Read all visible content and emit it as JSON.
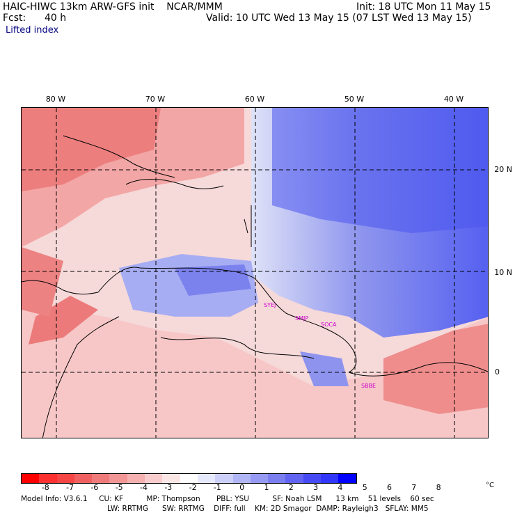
{
  "header": {
    "model_line": "HAIC-HIWC 13km ARW-GFS init    NCAR/MMM",
    "init_line": "Init: 18 UTC Mon 11 May 15",
    "fcst_label": "Fcst:",
    "fcst_value": "40 h",
    "valid_line": "Valid: 10 UTC Wed 13 May 15 (07 LST Wed 13 May 15)",
    "field_name": "Lifted index"
  },
  "map": {
    "longitude_labels": [
      "80 W",
      "70 W",
      "60 W",
      "50 W",
      "40 W"
    ],
    "latitude_labels": [
      "20 N",
      "10 N",
      "0"
    ],
    "stations": [
      "SYEJ",
      "SMJP",
      "SOCA",
      "SBBE"
    ],
    "station_color": "#cc00cc"
  },
  "colorbar": {
    "ticks": [
      "-8",
      "-7",
      "-6",
      "-5",
      "-4",
      "-3",
      "-2",
      "-1",
      "0",
      "1",
      "2",
      "3",
      "4",
      "5",
      "6",
      "7",
      "8"
    ],
    "unit": "°C",
    "colors": [
      "#ff0000",
      "#ff3030",
      "#f54545",
      "#f06060",
      "#ee7a7a",
      "#f29595",
      "#f5b0b0",
      "#f8cccc",
      "#fbe6e6",
      "#ffffff",
      "#e6e8fb",
      "#ccd0f8",
      "#b0b6f5",
      "#9599f2",
      "#7a7eee",
      "#6064f0",
      "#454af5",
      "#3036fa",
      "#0000ff"
    ]
  },
  "footer": {
    "line1": "Model Info: V3.6.1     CU: KF          MP: Thompson       PBL: YSU          SF: Noah LSM      13 km    51 levels    60 sec",
    "line2": "LW: RRTMG      SW: RRTMG    DIFF: full    KM: 2D Smagor  DAMP: Rayleigh3   SFLAY: MM5"
  }
}
